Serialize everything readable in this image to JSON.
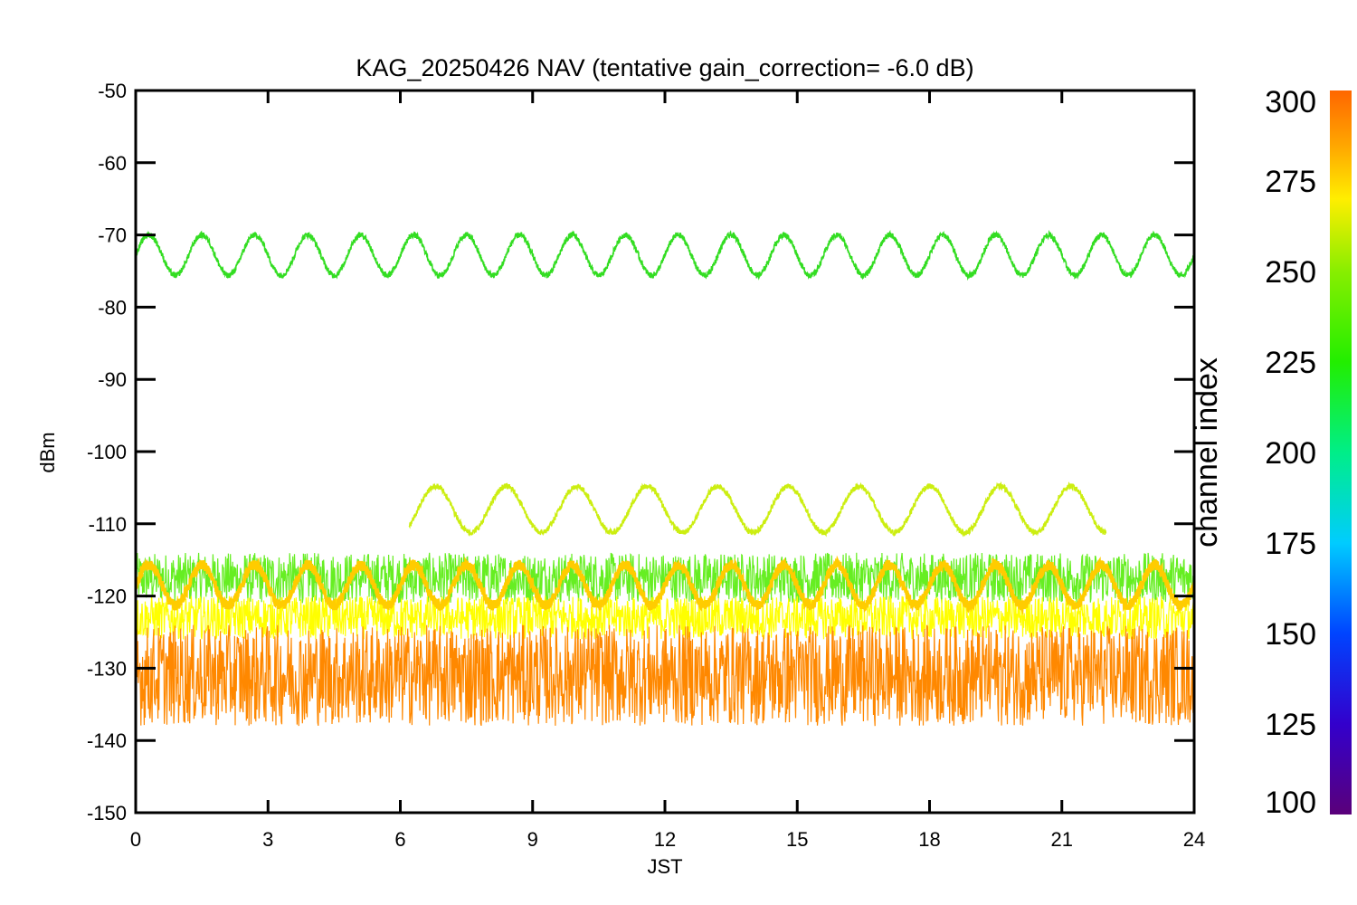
{
  "chart_data": {
    "type": "line",
    "title": "KAG_20250426 NAV (tentative gain_correction= -6.0 dB)",
    "xlabel": "JST",
    "ylabel": "dBm",
    "xlim": [
      0,
      24
    ],
    "ylim": [
      -150,
      -50
    ],
    "xticks": [
      0,
      3,
      6,
      9,
      12,
      15,
      18,
      21,
      24
    ],
    "yticks": [
      -50,
      -60,
      -70,
      -80,
      -90,
      -100,
      -110,
      -120,
      -130,
      -140,
      -150
    ],
    "colorbar": {
      "label": "channel index",
      "range": [
        100,
        300
      ],
      "ticks": [
        100,
        125,
        150,
        175,
        200,
        225,
        250,
        275,
        300
      ],
      "colormap": "rainbow"
    },
    "series": [
      {
        "channel": 240,
        "color": "#33dd22",
        "x_start": 0,
        "x_end": 24,
        "baseline": -72.8,
        "amplitude": 2.8,
        "period_hours": 1.2,
        "note": "strong sinusoidal signal"
      },
      {
        "channel": 265,
        "color": "#ccee11",
        "x_start": 6.2,
        "x_end": 22.0,
        "baseline": -108,
        "amplitude": 3.2,
        "period_hours": 1.6
      },
      {
        "channel": 280,
        "color": "#ffcc00",
        "x_start": 0,
        "x_end": 24,
        "baseline": -118.5,
        "amplitude": 2.8,
        "period_hours": 1.2
      },
      {
        "channel_range": [
          245,
          260
        ],
        "color": "#66ee22",
        "x_start": 0,
        "x_end": 24,
        "band_low": -121,
        "band_high": -114
      },
      {
        "channel_range": [
          265,
          275
        ],
        "color": "#ffff00",
        "x_start": 0,
        "x_end": 24,
        "band_low": -126,
        "band_high": -120
      },
      {
        "channel_range": [
          280,
          300
        ],
        "color": "#ff8800",
        "x_start": 0,
        "x_end": 24,
        "band_low": -138,
        "band_high": -124
      }
    ]
  }
}
